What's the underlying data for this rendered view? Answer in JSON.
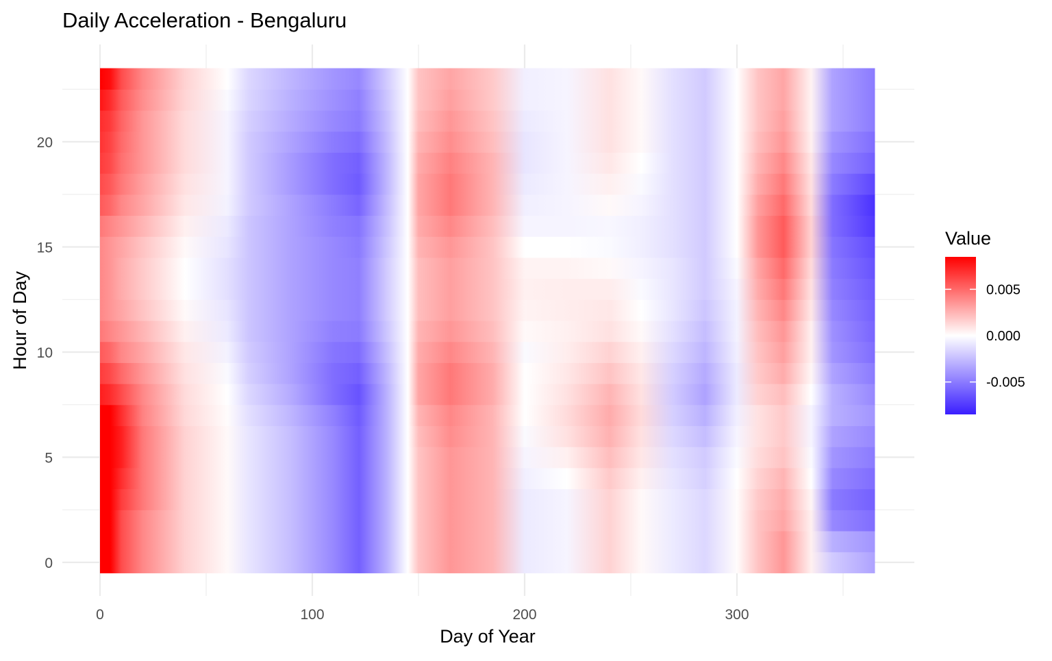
{
  "chart_data": {
    "type": "heatmap",
    "title": "Daily Acceleration - Bengaluru",
    "xlabel": "Day of Year",
    "ylabel": "Hour of Day",
    "xlim": [
      0,
      365
    ],
    "ylim": [
      0,
      23
    ],
    "x_ticks": [
      0,
      100,
      200,
      300
    ],
    "y_ticks": [
      0,
      5,
      10,
      15,
      20
    ],
    "legend": {
      "title": "Value",
      "position": "right",
      "ticks": [
        {
          "value": 0.005,
          "label": "0.005"
        },
        {
          "value": 0.0,
          "label": "0.000"
        },
        {
          "value": -0.005,
          "label": "-0.005"
        }
      ],
      "range": [
        -0.0085,
        0.0085
      ]
    },
    "colors": {
      "low": "#3a1eff",
      "mid": "#ffffff",
      "high": "#ff0000",
      "grid": "#ebebeb",
      "axis_text": "#4d4d4d"
    },
    "grid": true,
    "x_values_note": "columns at x-anchor days; values per hour row",
    "x_anchors": [
      0,
      5,
      10,
      20,
      40,
      60,
      70,
      90,
      110,
      122,
      135,
      145,
      150,
      165,
      185,
      200,
      220,
      240,
      255,
      270,
      285,
      300,
      310,
      322,
      335,
      345,
      365
    ],
    "z": [
      {
        "hour": 0,
        "values": [
          0.009,
          0.009,
          0.006,
          0.004,
          0.0015,
          0.0002,
          -0.001,
          -0.0025,
          -0.0045,
          -0.006,
          -0.003,
          0.0,
          0.002,
          0.0035,
          0.0025,
          -0.0008,
          -0.0004,
          0.0015,
          0.0002,
          -0.0008,
          -0.0015,
          0.0001,
          0.002,
          0.0035,
          0.0005,
          -0.002,
          -0.0035
        ]
      },
      {
        "hour": 1,
        "values": [
          0.009,
          0.009,
          0.006,
          0.004,
          0.0015,
          0.0002,
          -0.001,
          -0.0025,
          -0.0045,
          -0.006,
          -0.003,
          0.0,
          0.002,
          0.0035,
          0.0025,
          -0.0008,
          -0.0004,
          0.0015,
          0.0002,
          -0.0008,
          -0.0015,
          0.0001,
          0.002,
          0.0035,
          0.0005,
          -0.003,
          -0.004
        ]
      },
      {
        "hour": 2,
        "values": [
          0.009,
          0.009,
          0.006,
          0.004,
          0.0015,
          0.0002,
          -0.001,
          -0.0025,
          -0.0045,
          -0.006,
          -0.003,
          0.0,
          0.002,
          0.0035,
          0.0025,
          -0.0008,
          -0.0004,
          0.0015,
          0.0002,
          -0.0008,
          -0.0015,
          0.0001,
          0.002,
          0.003,
          0.0005,
          -0.0045,
          -0.0055
        ]
      },
      {
        "hour": 3,
        "values": [
          0.009,
          0.009,
          0.0065,
          0.0045,
          0.0015,
          0.0002,
          -0.001,
          -0.0025,
          -0.0045,
          -0.006,
          -0.003,
          0.0,
          0.002,
          0.0035,
          0.0025,
          -0.0008,
          -0.0004,
          0.0015,
          0.0002,
          -0.0008,
          -0.0015,
          0.0001,
          0.0018,
          0.0028,
          0.0003,
          -0.005,
          -0.006
        ]
      },
      {
        "hour": 4,
        "values": [
          0.009,
          0.009,
          0.007,
          0.0045,
          0.0015,
          0.0002,
          -0.001,
          -0.0025,
          -0.0045,
          -0.006,
          -0.003,
          0.0,
          0.002,
          0.0035,
          0.0025,
          -0.0006,
          0.0,
          0.0018,
          0.0005,
          -0.001,
          -0.0018,
          0.0,
          0.0015,
          0.0025,
          0.0,
          -0.0045,
          -0.0055
        ]
      },
      {
        "hour": 5,
        "values": [
          0.009,
          0.009,
          0.0075,
          0.0045,
          0.0015,
          0.0002,
          -0.001,
          -0.0025,
          -0.0045,
          -0.006,
          -0.003,
          0.0,
          0.002,
          0.0035,
          0.0025,
          -0.0004,
          0.0005,
          0.0022,
          0.0008,
          -0.0012,
          -0.002,
          -0.0002,
          0.0012,
          0.002,
          -0.0002,
          -0.004,
          -0.005
        ]
      },
      {
        "hour": 6,
        "values": [
          0.009,
          0.009,
          0.0075,
          0.0045,
          0.0015,
          0.0002,
          -0.001,
          -0.0025,
          -0.0045,
          -0.006,
          -0.003,
          0.0,
          0.0022,
          0.0038,
          0.0025,
          -0.0002,
          0.001,
          0.0026,
          0.001,
          -0.0015,
          -0.0025,
          -0.0004,
          0.001,
          0.0018,
          -0.0004,
          -0.0035,
          -0.0045
        ]
      },
      {
        "hour": 7,
        "values": [
          0.009,
          0.009,
          0.007,
          0.0042,
          0.0013,
          0.0001,
          -0.0012,
          -0.0028,
          -0.0048,
          -0.0062,
          -0.003,
          0.0,
          0.0025,
          0.004,
          0.0025,
          0.0,
          0.0012,
          0.0028,
          0.0012,
          -0.0018,
          -0.003,
          -0.0006,
          0.001,
          0.0018,
          -0.0004,
          -0.003,
          -0.004
        ]
      },
      {
        "hour": 8,
        "values": [
          0.0075,
          0.007,
          0.006,
          0.004,
          0.0012,
          0.0,
          -0.0015,
          -0.0032,
          -0.0055,
          -0.0065,
          -0.003,
          0.0,
          0.003,
          0.0045,
          0.0028,
          0.0,
          0.001,
          0.0025,
          0.001,
          -0.002,
          -0.0035,
          -0.0008,
          0.0015,
          0.0022,
          0.0,
          -0.003,
          -0.0045
        ]
      },
      {
        "hour": 9,
        "values": [
          0.0065,
          0.006,
          0.005,
          0.0035,
          0.001,
          -0.0002,
          -0.0018,
          -0.0035,
          -0.0055,
          -0.006,
          -0.0028,
          0.0,
          0.003,
          0.0045,
          0.0028,
          0.0,
          0.0008,
          0.002,
          0.0008,
          -0.0018,
          -0.0032,
          -0.0008,
          0.0018,
          0.0028,
          0.0003,
          -0.0035,
          -0.005
        ]
      },
      {
        "hour": 10,
        "values": [
          0.0055,
          0.005,
          0.004,
          0.003,
          0.0008,
          -0.0005,
          -0.002,
          -0.0035,
          -0.0052,
          -0.0055,
          -0.0025,
          0.0,
          0.0028,
          0.004,
          0.0025,
          -0.0002,
          0.0006,
          0.0015,
          0.0005,
          -0.0015,
          -0.0028,
          -0.0006,
          0.002,
          0.0032,
          0.0005,
          -0.004,
          -0.0055
        ]
      },
      {
        "hour": 11,
        "values": [
          0.0045,
          0.004,
          0.0035,
          0.0025,
          0.0005,
          -0.0008,
          -0.0022,
          -0.0035,
          -0.0048,
          -0.005,
          -0.0022,
          0.0,
          0.0025,
          0.0035,
          0.0022,
          0.0002,
          0.0005,
          0.001,
          0.0002,
          -0.0012,
          -0.0025,
          -0.0005,
          0.0022,
          0.0035,
          0.0005,
          -0.0042,
          -0.0058
        ]
      },
      {
        "hour": 12,
        "values": [
          0.004,
          0.0035,
          0.003,
          0.002,
          0.0002,
          -0.001,
          -0.0022,
          -0.0035,
          -0.0045,
          -0.0048,
          -0.002,
          0.0,
          0.0022,
          0.0032,
          0.002,
          0.0004,
          0.0006,
          0.0008,
          0.0,
          -0.001,
          -0.0022,
          -0.0005,
          0.0025,
          0.004,
          0.0008,
          -0.0045,
          -0.006
        ]
      },
      {
        "hour": 13,
        "values": [
          0.004,
          0.0035,
          0.0028,
          0.0018,
          0.0,
          -0.0012,
          -0.0022,
          -0.0035,
          -0.0045,
          -0.0048,
          -0.002,
          0.0,
          0.0022,
          0.0032,
          0.002,
          0.0005,
          0.0006,
          0.0006,
          -0.0002,
          -0.001,
          -0.002,
          -0.0004,
          0.0028,
          0.0045,
          0.001,
          -0.0048,
          -0.0062
        ]
      },
      {
        "hour": 14,
        "values": [
          0.004,
          0.0035,
          0.0028,
          0.0018,
          0.0,
          -0.0012,
          -0.0022,
          -0.0035,
          -0.0045,
          -0.0048,
          -0.002,
          0.0,
          0.0022,
          0.0032,
          0.002,
          0.0004,
          0.0004,
          0.0002,
          -0.0004,
          -0.001,
          -0.002,
          -0.0002,
          0.003,
          0.005,
          0.0012,
          -0.005,
          -0.0065
        ]
      },
      {
        "hour": 15,
        "values": [
          0.004,
          0.0035,
          0.003,
          0.002,
          0.0002,
          -0.001,
          -0.0022,
          -0.0035,
          -0.0045,
          -0.005,
          -0.0022,
          0.0,
          0.0025,
          0.0035,
          0.002,
          0.0,
          0.0,
          -0.0002,
          -0.0006,
          -0.0012,
          -0.002,
          0.0,
          0.0035,
          0.0055,
          0.0015,
          -0.0052,
          -0.0068
        ]
      },
      {
        "hour": 16,
        "values": [
          0.0045,
          0.004,
          0.0035,
          0.0025,
          0.0005,
          -0.0008,
          -0.0022,
          -0.0035,
          -0.0048,
          -0.0052,
          -0.0024,
          0.0,
          0.0028,
          0.004,
          0.0022,
          -0.0004,
          -0.0004,
          -0.0003,
          -0.0006,
          -0.0012,
          -0.002,
          0.0,
          0.0035,
          0.0055,
          0.0015,
          -0.0055,
          -0.0075
        ]
      },
      {
        "hour": 17,
        "values": [
          0.0055,
          0.005,
          0.004,
          0.003,
          0.0008,
          -0.0005,
          -0.002,
          -0.0035,
          -0.005,
          -0.0058,
          -0.0026,
          0.0,
          0.003,
          0.0045,
          0.0025,
          -0.0006,
          -0.0004,
          0.0002,
          -0.0004,
          -0.0012,
          -0.002,
          0.0,
          0.0032,
          0.005,
          0.0012,
          -0.0055,
          -0.0078
        ]
      },
      {
        "hour": 18,
        "values": [
          0.006,
          0.0055,
          0.0045,
          0.0032,
          0.001,
          -0.0004,
          -0.002,
          -0.0038,
          -0.0055,
          -0.0062,
          -0.0028,
          0.0,
          0.003,
          0.0045,
          0.0025,
          -0.0008,
          -0.0004,
          0.0005,
          -0.0002,
          -0.0012,
          -0.002,
          0.0,
          0.0028,
          0.0045,
          0.001,
          -0.005,
          -0.007
        ]
      },
      {
        "hour": 19,
        "values": [
          0.0065,
          0.006,
          0.0048,
          0.0035,
          0.0012,
          -0.0004,
          -0.002,
          -0.0038,
          -0.0055,
          -0.006,
          -0.0028,
          0.0,
          0.0028,
          0.0042,
          0.0025,
          -0.001,
          -0.0004,
          0.0008,
          0.0,
          -0.0012,
          -0.002,
          0.0,
          0.0025,
          0.004,
          0.0008,
          -0.0045,
          -0.006
        ]
      },
      {
        "hour": 20,
        "values": [
          0.0068,
          0.0062,
          0.005,
          0.0035,
          0.0012,
          -0.0004,
          -0.002,
          -0.0035,
          -0.005,
          -0.0055,
          -0.0026,
          0.0,
          0.0025,
          0.0038,
          0.0022,
          -0.001,
          -0.0004,
          0.001,
          0.0002,
          -0.0012,
          -0.002,
          0.0,
          0.0022,
          0.0035,
          0.0005,
          -0.004,
          -0.0055
        ]
      },
      {
        "hour": 21,
        "values": [
          0.007,
          0.0065,
          0.0052,
          0.0035,
          0.0012,
          -0.0004,
          -0.0018,
          -0.0032,
          -0.0045,
          -0.005,
          -0.0024,
          0.0,
          0.0022,
          0.0035,
          0.002,
          -0.0008,
          -0.0004,
          0.001,
          0.0002,
          -0.0012,
          -0.002,
          0.0,
          0.002,
          0.0032,
          0.0004,
          -0.0035,
          -0.005
        ]
      },
      {
        "hour": 22,
        "values": [
          0.0078,
          0.007,
          0.0055,
          0.0038,
          0.0014,
          -0.0002,
          -0.0016,
          -0.003,
          -0.0042,
          -0.0048,
          -0.0022,
          0.0,
          0.002,
          0.0032,
          0.0018,
          -0.0006,
          -0.0004,
          0.001,
          0.0002,
          -0.0012,
          -0.002,
          0.0,
          0.002,
          0.003,
          0.0004,
          -0.0035,
          -0.005
        ]
      },
      {
        "hour": 23,
        "values": [
          0.009,
          0.008,
          0.006,
          0.004,
          0.0015,
          0.0,
          -0.0015,
          -0.0028,
          -0.004,
          -0.0045,
          -0.002,
          0.0,
          0.002,
          0.003,
          0.0018,
          -0.0006,
          -0.0004,
          0.001,
          0.0002,
          -0.0012,
          -0.002,
          0.0,
          0.002,
          0.003,
          0.0004,
          -0.0035,
          -0.005
        ]
      }
    ]
  }
}
